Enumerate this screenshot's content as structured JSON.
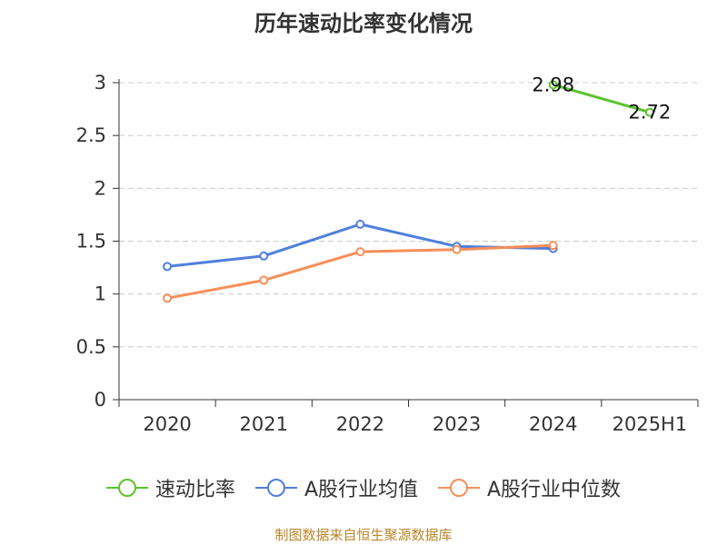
{
  "chart_data": {
    "type": "line",
    "title": "历年速动比率变化情况",
    "categories": [
      "2020",
      "2021",
      "2022",
      "2023",
      "2024",
      "2025H1"
    ],
    "ylim": [
      0,
      3
    ],
    "yticks": [
      "0",
      "0.5",
      "1",
      "1.5",
      "2",
      "2.5",
      "3"
    ],
    "grid": true,
    "legend_position": "bottom",
    "series": [
      {
        "name": "速动比率",
        "color": "#5ac42c",
        "values": [
          null,
          null,
          null,
          null,
          2.98,
          2.72
        ],
        "labels": [
          null,
          null,
          null,
          null,
          "2.98",
          "2.72"
        ]
      },
      {
        "name": "A股行业均值",
        "color": "#4f7fdb",
        "values": [
          1.26,
          1.36,
          1.66,
          1.45,
          1.43,
          null
        ]
      },
      {
        "name": "A股行业中位数",
        "color": "#f78e58",
        "values": [
          0.96,
          1.13,
          1.4,
          1.42,
          1.46,
          null
        ]
      }
    ]
  },
  "source_text": "制图数据来自恒生聚源数据库"
}
